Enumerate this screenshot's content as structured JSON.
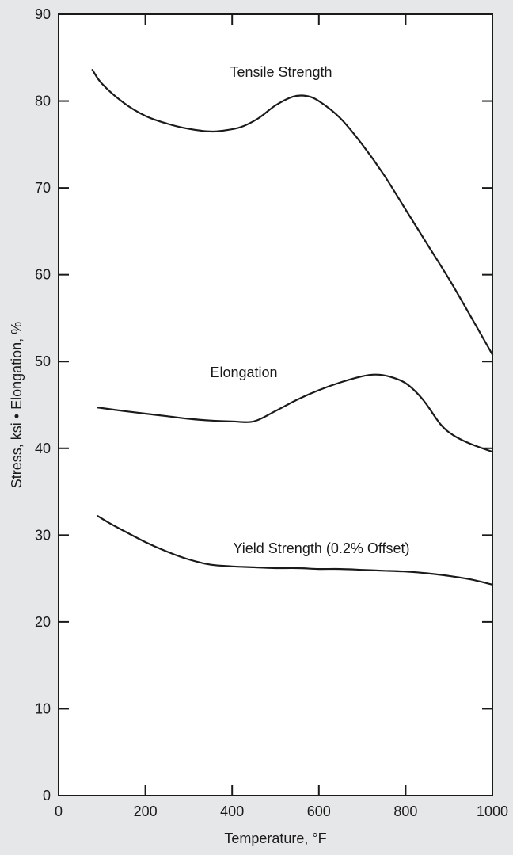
{
  "chart_data": {
    "type": "line",
    "title": "",
    "xlabel": "Temperature, °F",
    "ylabel": "Stress, ksi • Elongation, %",
    "xlim": [
      0,
      1000
    ],
    "ylim": [
      0,
      90
    ],
    "x_ticks": [
      0,
      200,
      400,
      600,
      800,
      1000
    ],
    "y_ticks": [
      0,
      10,
      20,
      30,
      40,
      50,
      60,
      70,
      80,
      90
    ],
    "grid": false,
    "legend": "none (labels placed next to curves)",
    "colors": {
      "background": "#e6e7e8",
      "plot_area": "#ffffff",
      "line": "#1a1a1a"
    },
    "series": [
      {
        "name": "Tensile Strength",
        "x": [
          78,
          100,
          150,
          200,
          250,
          300,
          350,
          380,
          420,
          460,
          500,
          540,
          570,
          600,
          650,
          700,
          750,
          800,
          850,
          900,
          950,
          1000
        ],
        "y": [
          83.6,
          82.0,
          79.8,
          78.3,
          77.4,
          76.8,
          76.5,
          76.6,
          77.0,
          78.0,
          79.5,
          80.5,
          80.6,
          80.0,
          78.0,
          75.0,
          71.5,
          67.5,
          63.5,
          59.5,
          55.2,
          50.8
        ]
      },
      {
        "name": "Elongation",
        "x": [
          90,
          150,
          200,
          250,
          300,
          350,
          400,
          450,
          500,
          550,
          600,
          650,
          700,
          730,
          760,
          800,
          840,
          880,
          910,
          950,
          1000
        ],
        "y": [
          44.7,
          44.3,
          44.0,
          43.7,
          43.4,
          43.2,
          43.1,
          43.1,
          44.3,
          45.6,
          46.7,
          47.6,
          48.3,
          48.5,
          48.3,
          47.5,
          45.6,
          42.8,
          41.5,
          40.5,
          39.6
        ]
      },
      {
        "name": "Yield Strength (0.2% Offset)",
        "x": [
          90,
          120,
          150,
          200,
          250,
          300,
          350,
          400,
          450,
          500,
          550,
          600,
          650,
          700,
          750,
          800,
          850,
          900,
          950,
          1000
        ],
        "y": [
          32.2,
          31.3,
          30.5,
          29.2,
          28.1,
          27.2,
          26.6,
          26.4,
          26.3,
          26.2,
          26.2,
          26.1,
          26.1,
          26.0,
          25.9,
          25.8,
          25.6,
          25.3,
          24.9,
          24.3
        ]
      }
    ]
  }
}
